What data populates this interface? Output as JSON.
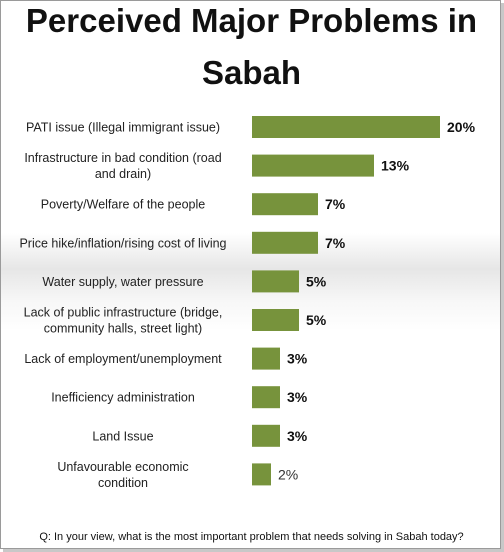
{
  "title_line1": "Perceived Major Problems in",
  "title_line2": "Sabah",
  "footnote": "Q: In your view, what is the most important problem that needs solving in Sabah today?",
  "colors": {
    "bar": "#77933c",
    "text": "#222222"
  },
  "chart_data": {
    "type": "bar",
    "orientation": "horizontal",
    "categories": [
      "PATI issue (Illegal immigrant  issue)",
      "Infrastructure in bad condition (road and drain)",
      "Poverty/Welfare of the people",
      "Price hike/inflation/rising cost of living",
      "Water supply, water pressure",
      "Lack of public infrastructure (bridge, community halls, street light)",
      "Lack of employment/unemployment",
      "Inefficiency administration",
      "Land Issue",
      "Unfavourable economic condition"
    ],
    "category_lines": [
      [
        "PATI issue (Illegal immigrant  issue)"
      ],
      [
        "Infrastructure in bad condition (road",
        "and drain)"
      ],
      [
        "Poverty/Welfare of the people"
      ],
      [
        "Price hike/inflation/rising cost of living"
      ],
      [
        "Water supply, water pressure"
      ],
      [
        "Lack of public infrastructure (bridge,",
        "community halls, street light)"
      ],
      [
        "Lack of employment/unemployment"
      ],
      [
        "Inefficiency administration"
      ],
      [
        "Land Issue"
      ],
      [
        "Unfavourable economic",
        "condition"
      ]
    ],
    "values": [
      20,
      13,
      7,
      7,
      5,
      5,
      3,
      3,
      3,
      2
    ],
    "value_labels": [
      "20%",
      "13%",
      "7%",
      "7%",
      "5%",
      "5%",
      "3%",
      "3%",
      "3%",
      "2%"
    ],
    "unit": "%",
    "grid": false,
    "legend": "none",
    "xlim": [
      0,
      20
    ]
  }
}
